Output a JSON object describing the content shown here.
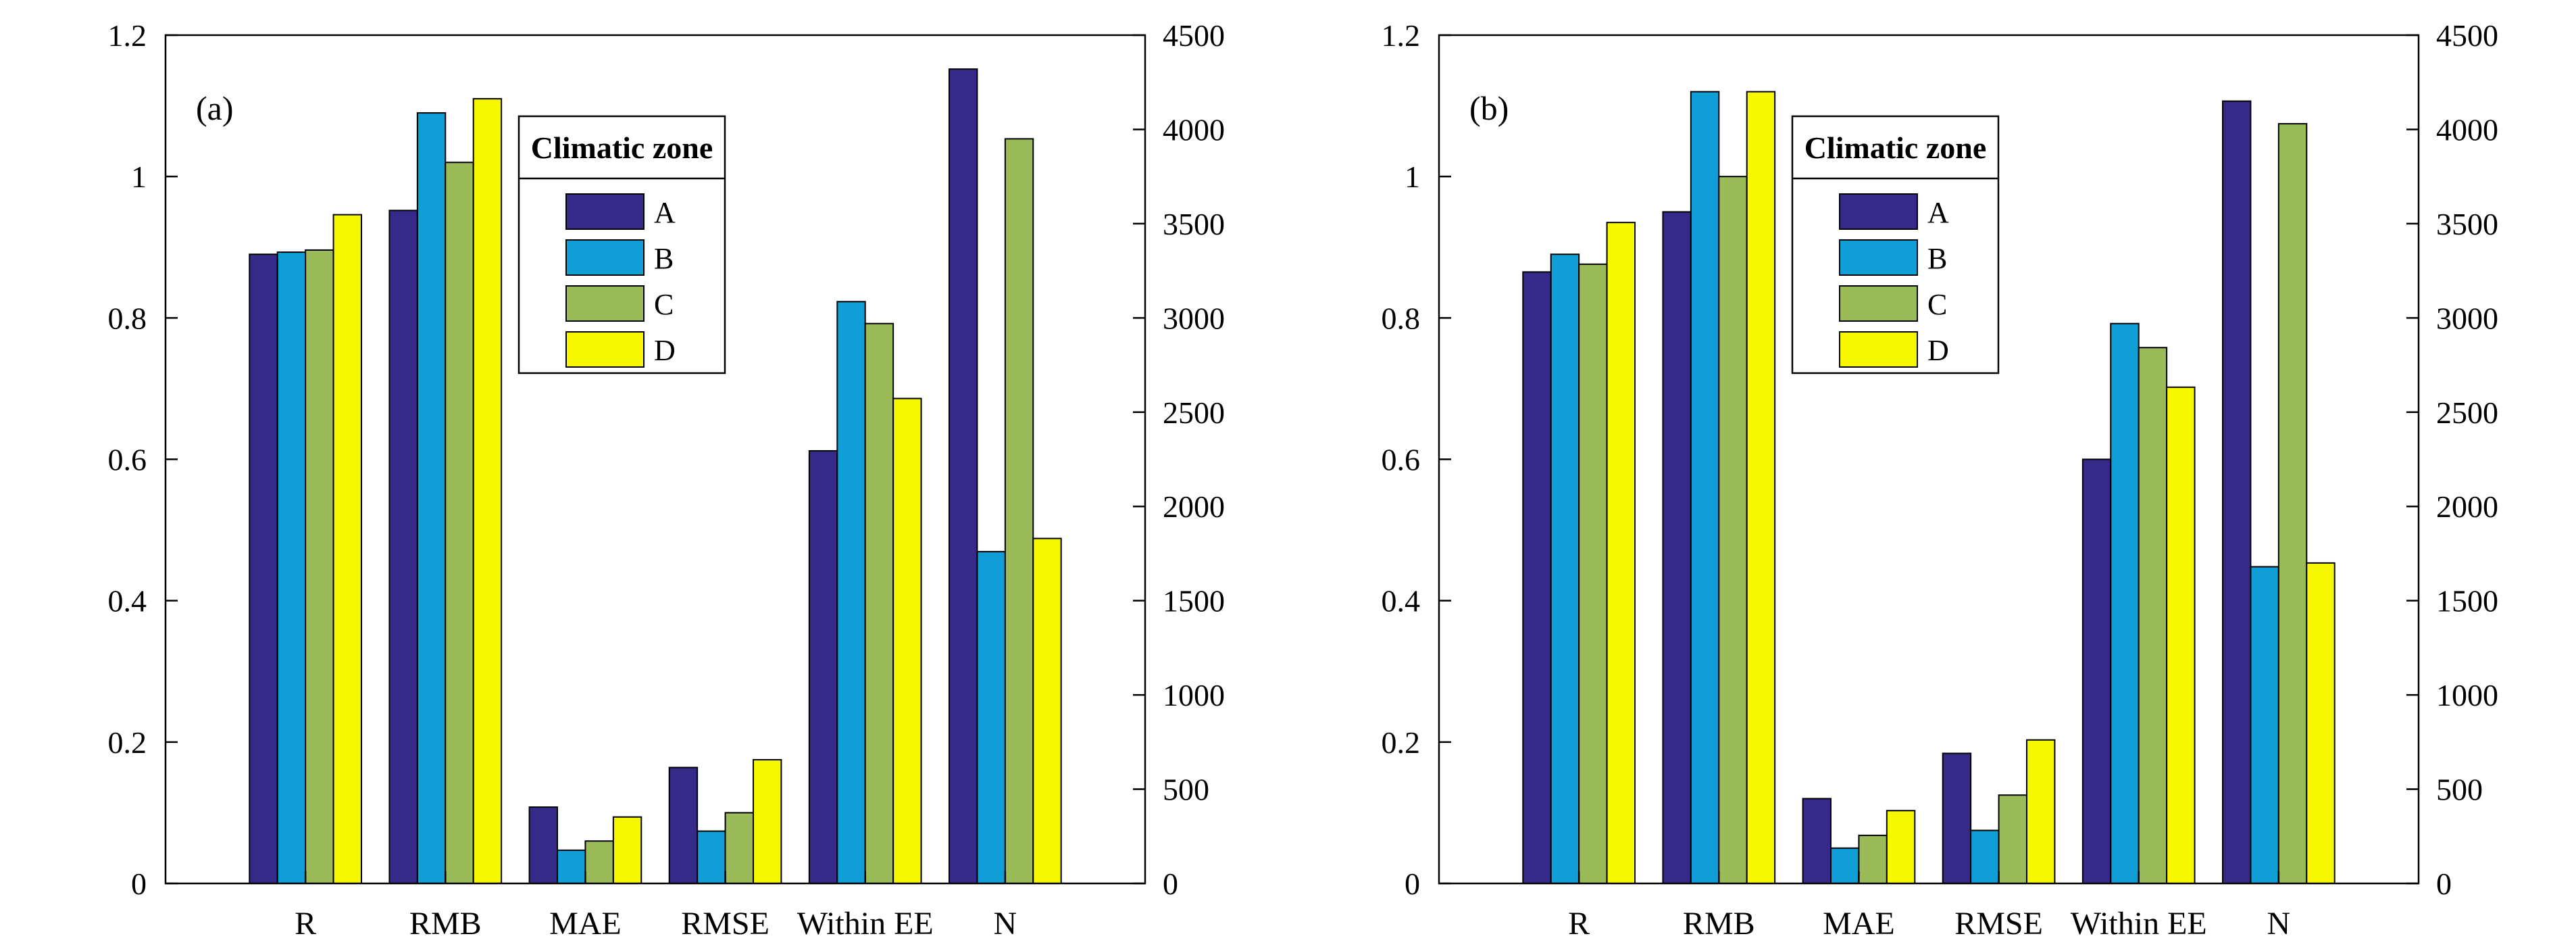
{
  "chart_data": [
    {
      "type": "bar",
      "panel_label": "(a)",
      "categories": [
        "R",
        "RMB",
        "MAE",
        "RMSE",
        "Within EE",
        "N"
      ],
      "left_axis": {
        "ylim": [
          0,
          1.2
        ],
        "ticks": [
          "0",
          "0.2",
          "0.4",
          "0.6",
          "0.8",
          "1",
          "1.2"
        ]
      },
      "right_axis": {
        "ylim": [
          0,
          4500
        ],
        "ticks": [
          "0",
          "500",
          "1000",
          "1500",
          "2000",
          "2500",
          "3000",
          "3500",
          "4000",
          "4500"
        ],
        "applies_to": "N"
      },
      "legend": {
        "title": "Climatic zone",
        "position": "top-center"
      },
      "series": [
        {
          "name": "A",
          "values": [
            0.89,
            0.952,
            0.108,
            0.164,
            0.612,
            4320
          ]
        },
        {
          "name": "B",
          "values": [
            0.893,
            1.09,
            0.047,
            0.074,
            0.823,
            1760
          ]
        },
        {
          "name": "C",
          "values": [
            0.896,
            1.02,
            0.06,
            0.1,
            0.792,
            3950
          ]
        },
        {
          "name": "D",
          "values": [
            0.946,
            1.11,
            0.094,
            0.175,
            0.686,
            1830
          ]
        }
      ]
    },
    {
      "type": "bar",
      "panel_label": "(b)",
      "categories": [
        "R",
        "RMB",
        "MAE",
        "RMSE",
        "Within EE",
        "N"
      ],
      "left_axis": {
        "ylim": [
          0,
          1.2
        ],
        "ticks": [
          "0",
          "0.2",
          "0.4",
          "0.6",
          "0.8",
          "1",
          "1.2"
        ]
      },
      "right_axis": {
        "ylim": [
          0,
          4500
        ],
        "ticks": [
          "0",
          "500",
          "1000",
          "1500",
          "2000",
          "2500",
          "3000",
          "3500",
          "4000",
          "4500"
        ],
        "applies_to": "N"
      },
      "legend": {
        "title": "Climatic zone",
        "position": "top-center"
      },
      "series": [
        {
          "name": "A",
          "values": [
            0.865,
            0.95,
            0.12,
            0.184,
            0.6,
            4150
          ]
        },
        {
          "name": "B",
          "values": [
            0.89,
            1.12,
            0.05,
            0.075,
            0.792,
            1680
          ]
        },
        {
          "name": "C",
          "values": [
            0.876,
            1.0,
            0.068,
            0.125,
            0.758,
            4030
          ]
        },
        {
          "name": "D",
          "values": [
            0.935,
            1.12,
            0.103,
            0.203,
            0.702,
            1700
          ]
        }
      ]
    }
  ],
  "colors": {
    "A": "#352a87",
    "B": "#0f9ed5",
    "C": "#9bbb59",
    "D": "#f7f700"
  }
}
